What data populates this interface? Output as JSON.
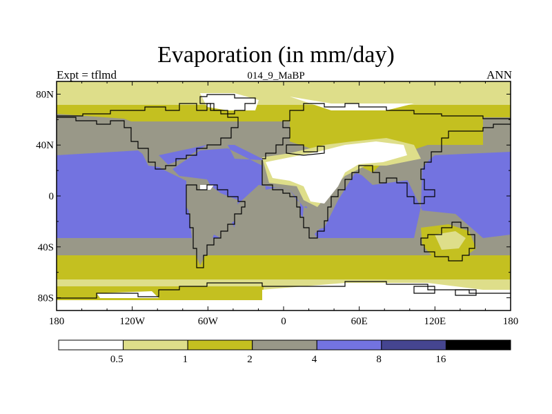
{
  "title": "Evaporation (in mm/day)",
  "left_label": "Expt = tflmd",
  "center_label": "014_9_MaBP",
  "right_label": "ANN",
  "colors": {
    "c0": "#ffffff",
    "c1": "#dede8a",
    "c2": "#c4c020",
    "c3": "#999888",
    "c4": "#7373e0",
    "c5": "#454590",
    "c6": "#000000",
    "coast": "#000000"
  },
  "chart_data": {
    "type": "map",
    "variable": "Evaporation",
    "units": "mm/day",
    "lon_range": [
      -180,
      180
    ],
    "lat_range": [
      -90,
      90
    ],
    "x_ticks": [
      {
        "value": -180,
        "label": "180"
      },
      {
        "value": -120,
        "label": "120W"
      },
      {
        "value": -60,
        "label": "60W"
      },
      {
        "value": 0,
        "label": "0"
      },
      {
        "value": 60,
        "label": "60E"
      },
      {
        "value": 120,
        "label": "120E"
      },
      {
        "value": 180,
        "label": "180"
      }
    ],
    "y_ticks": [
      {
        "value": 80,
        "label": "80N"
      },
      {
        "value": 40,
        "label": "40N"
      },
      {
        "value": 0,
        "label": "0"
      },
      {
        "value": -40,
        "label": "40S"
      },
      {
        "value": -80,
        "label": "80S"
      }
    ],
    "colorbar": {
      "levels": [
        "0.5",
        "1",
        "2",
        "4",
        "8",
        "16"
      ],
      "colors": [
        "#ffffff",
        "#dede8a",
        "#c4c020",
        "#999888",
        "#7373e0",
        "#454590",
        "#000000"
      ]
    }
  }
}
